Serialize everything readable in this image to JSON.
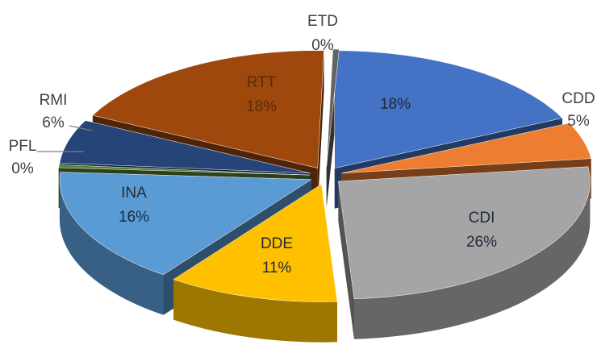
{
  "chart_data": {
    "type": "pie",
    "title": "",
    "slices": [
      {
        "label": "",
        "value": 18,
        "percent_label": "18%",
        "color": "#4472C4"
      },
      {
        "label": "CDD",
        "value": 5,
        "percent_label": "5%",
        "color": "#ED7D31"
      },
      {
        "label": "CDI",
        "value": 26,
        "percent_label": "26%",
        "color": "#A5A5A5"
      },
      {
        "label": "DDE",
        "value": 11,
        "percent_label": "11%",
        "color": "#FFC000"
      },
      {
        "label": "INA",
        "value": 16,
        "percent_label": "16%",
        "color": "#5B9BD5"
      },
      {
        "label": "PFL",
        "value": 0,
        "percent_label": "0%",
        "color": "#548235"
      },
      {
        "label": "RMI",
        "value": 6,
        "percent_label": "6%",
        "color": "#264478"
      },
      {
        "label": "RTT",
        "value": 18,
        "percent_label": "18%",
        "color": "#9E480E"
      },
      {
        "label": "ETD",
        "value": 0,
        "percent_label": "0%",
        "color": "#636363"
      }
    ],
    "style": "3d-exploded",
    "legend": "none"
  }
}
